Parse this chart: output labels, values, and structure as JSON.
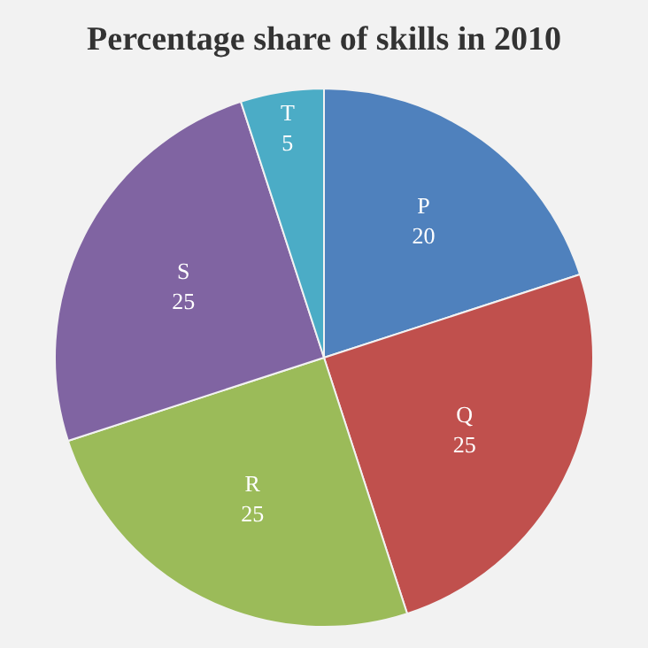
{
  "chart_data": {
    "type": "pie",
    "title": "Percentage share of skills in 2010",
    "categories": [
      "P",
      "Q",
      "R",
      "S",
      "T"
    ],
    "values": [
      20,
      25,
      25,
      25,
      5
    ],
    "colors": [
      "#4f81bd",
      "#c0504d",
      "#9bbb59",
      "#8064a2",
      "#4bacc6"
    ],
    "data_labels": true
  }
}
